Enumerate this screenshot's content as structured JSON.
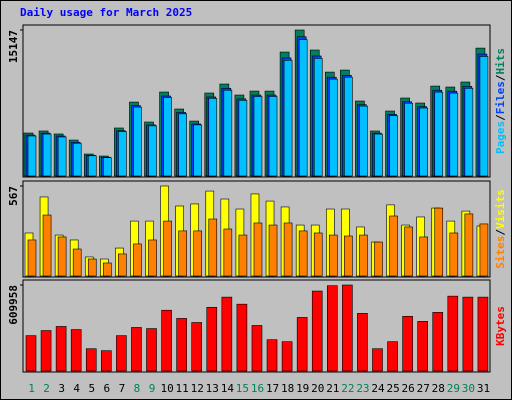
{
  "chart_data": {
    "type": "bar",
    "title": "Daily usage for March 2025",
    "legend_separator": "/",
    "categories": [
      "1",
      "2",
      "3",
      "4",
      "5",
      "6",
      "7",
      "8",
      "9",
      "10",
      "11",
      "12",
      "13",
      "14",
      "15",
      "16",
      "17",
      "18",
      "19",
      "20",
      "21",
      "22",
      "23",
      "24",
      "25",
      "26",
      "27",
      "28",
      "29",
      "30",
      "31"
    ],
    "category_colors": [
      "#00805c",
      "#00805c",
      "#000000",
      "#000000",
      "#000000",
      "#000000",
      "#000000",
      "#00805c",
      "#00805c",
      "#000000",
      "#000000",
      "#000000",
      "#000000",
      "#000000",
      "#00805c",
      "#00805c",
      "#000000",
      "#000000",
      "#000000",
      "#000000",
      "#000000",
      "#00805c",
      "#00805c",
      "#000000",
      "#000000",
      "#000000",
      "#000000",
      "#000000",
      "#00805c",
      "#00805c",
      "#000000"
    ],
    "panels": [
      {
        "ylim": [
          0,
          15147
        ],
        "yticks": [
          15147
        ],
        "series": [
          {
            "name": "Hits",
            "color": "#00805c",
            "values": [
              4460,
              4670,
              4360,
              3730,
              2280,
              2070,
              4980,
              7670,
              5600,
              8710,
              6950,
              5700,
              8610,
              9540,
              8400,
              8810,
              8810,
              12860,
              15147,
              13070,
              10780,
              10990,
              7780,
              4670,
              6740,
              8090,
              7570,
              9330,
              9230,
              9750,
              13270
            ]
          },
          {
            "name": "Files",
            "color": "#0040ff",
            "values": [
              4250,
              4450,
              4150,
              3500,
              2150,
              1950,
              4700,
              7300,
              5300,
              8300,
              6600,
              5400,
              8200,
              9100,
              8000,
              8400,
              8400,
              12250,
              14450,
              12450,
              10250,
              10450,
              7400,
              4450,
              6400,
              7700,
              7200,
              8900,
              8800,
              9300,
              12650
            ]
          },
          {
            "name": "Pages",
            "color": "#00c0ff",
            "values": [
              4150,
              4350,
              4050,
              3400,
              2100,
              1900,
              4600,
              7150,
              5200,
              8150,
              6450,
              5300,
              8050,
              8900,
              7850,
              8250,
              8250,
              12000,
              14150,
              12200,
              10050,
              10250,
              7250,
              4350,
              6250,
              7550,
              7050,
              8700,
              8600,
              9100,
              12400
            ]
          }
        ]
      },
      {
        "ylim": [
          0,
          567
        ],
        "yticks": [
          567
        ],
        "series": [
          {
            "name": "Visits",
            "color": "#ffff00",
            "values": [
              271,
              498,
              258,
              227,
              120,
              107,
              176,
              346,
              346,
              567,
              441,
              454,
              535,
              485,
              422,
              517,
              472,
              435,
              321,
              321,
              422,
              422,
              309,
              214,
              448,
              321,
              372,
              428,
              346,
              409,
              315
            ]
          },
          {
            "name": "Sites",
            "color": "#ff8000",
            "values": [
              227,
              384,
              246,
              170,
              107,
              82,
              139,
              202,
              227,
              346,
              284,
              284,
              359,
              296,
              258,
              334,
              321,
              334,
              284,
              271,
              258,
              252,
              258,
              214,
              378,
              309,
              246,
              428,
              271,
              391,
              328
            ]
          }
        ]
      },
      {
        "ylim": [
          0,
          609958
        ],
        "yticks": [
          609958
        ],
        "series": [
          {
            "name": "KBytes",
            "color": "#ff0000",
            "values": [
              251000,
              287000,
              316000,
              294000,
              158000,
              144000,
              251000,
              309000,
              301000,
              431000,
              373000,
              344000,
              452000,
              524000,
              474000,
              323000,
              222000,
              208000,
              380000,
              567000,
              605000,
              609958,
              409000,
              158000,
              208000,
              388000,
              352000,
              416000,
              531000,
              524000,
              524000
            ]
          }
        ]
      }
    ]
  }
}
